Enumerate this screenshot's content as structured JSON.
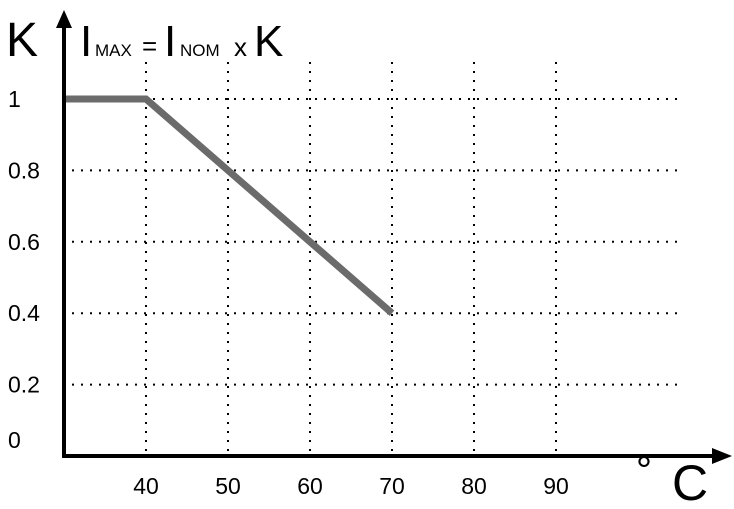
{
  "chart_data": {
    "type": "line",
    "title": "",
    "ylabel": "K",
    "xlabel": "°C",
    "formula": {
      "lhs_main": "I",
      "lhs_sub": "MAX",
      "eq": "=",
      "rhs_main": "I",
      "rhs_sub": "NOM",
      "op": "x",
      "factor": "K"
    },
    "x_unit": {
      "degree": "°",
      "letter": "C"
    },
    "xlim": [
      30,
      95
    ],
    "ylim": [
      0,
      1.0
    ],
    "x_ticks": [
      40,
      50,
      60,
      70,
      80,
      90
    ],
    "x_tick_labels": [
      "40",
      "50",
      "60",
      "70",
      "80",
      "90"
    ],
    "y_ticks": [
      1,
      0.8,
      0.6,
      0.4,
      0.2,
      0
    ],
    "y_tick_labels": [
      "1",
      "0.8",
      "0.6",
      "0.4",
      "0.2",
      "0"
    ],
    "grid": true,
    "legend": "none",
    "series": [
      {
        "x": [
          30,
          40,
          50,
          60,
          70
        ],
        "y": [
          1.0,
          1.0,
          0.8,
          0.6,
          0.4
        ],
        "color": "#6b6b6b"
      }
    ],
    "colors": {
      "axis": "#000000",
      "grid": "#000000",
      "line": "#6b6b6b"
    }
  }
}
